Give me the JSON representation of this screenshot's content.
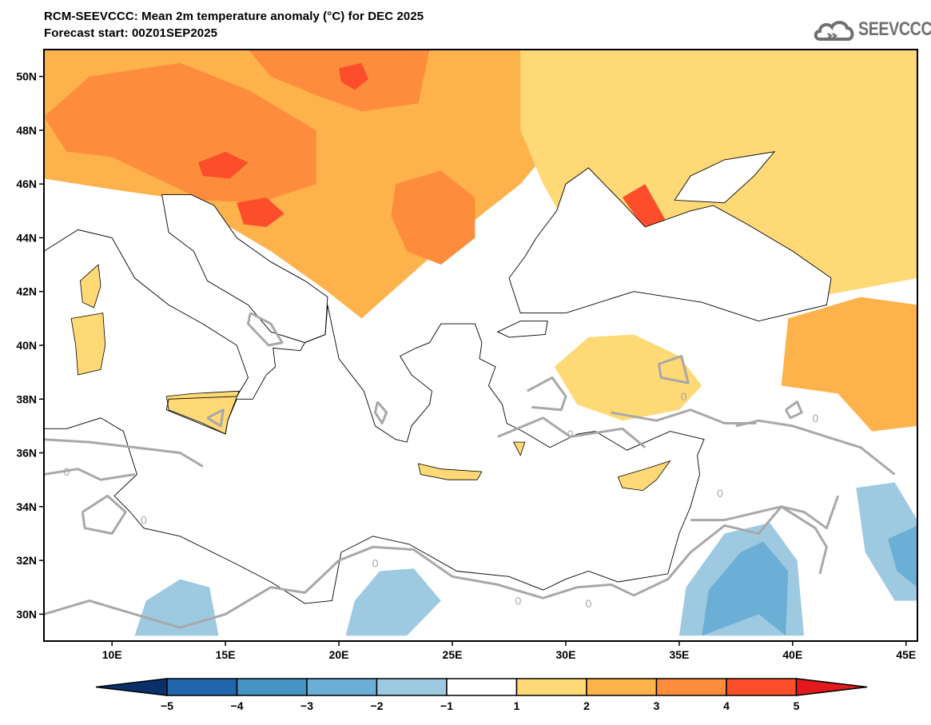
{
  "title": {
    "line1": "RCM-SEEVCCC: Mean 2m temperature anomaly (°C) for DEC 2025",
    "line2": "Forecast start: 00Z01SEP2025"
  },
  "logo": {
    "icon": "cloud-icon",
    "text": "SEEVCCC",
    "color": "#707070"
  },
  "chart_data": {
    "type": "heatmap",
    "title": "RCM-SEEVCCC: Mean 2m temperature anomaly (°C) for DEC 2025",
    "subtitle": "Forecast start: 00Z01SEP2025",
    "variable": "Mean 2m temperature anomaly",
    "units": "°C",
    "xlabel": "",
    "ylabel": "",
    "xlim": [
      7,
      45.5
    ],
    "ylim": [
      29,
      51
    ],
    "x_ticks": [
      10,
      15,
      20,
      25,
      30,
      35,
      40,
      45
    ],
    "x_tick_labels": [
      "10E",
      "15E",
      "20E",
      "25E",
      "30E",
      "35E",
      "40E",
      "45E"
    ],
    "y_ticks": [
      30,
      32,
      34,
      36,
      38,
      40,
      42,
      44,
      46,
      48,
      50
    ],
    "y_tick_labels": [
      "30N",
      "32N",
      "34N",
      "36N",
      "38N",
      "40N",
      "42N",
      "44N",
      "46N",
      "48N",
      "50N"
    ],
    "grid": false,
    "colorbar": {
      "placement": "bottom",
      "levels": [
        -5,
        -4,
        -3,
        -2,
        -1,
        1,
        2,
        3,
        4,
        5
      ],
      "tick_labels": [
        "-5",
        "-4",
        "-3",
        "-2",
        "-1",
        "1",
        "2",
        "3",
        "4",
        "5"
      ],
      "colors": [
        "#08306b",
        "#2166ac",
        "#4393c3",
        "#6baed6",
        "#9ecae1",
        "#ffffff",
        "#fed976",
        "#feb24c",
        "#fd8d3c",
        "#fc4e2a",
        "#e31a1c"
      ],
      "extend": "both"
    },
    "contour_line": {
      "level": 0,
      "label": "0",
      "color": "#a8a8a8"
    },
    "regions": [
      {
        "name": "central-europe-warm",
        "bin": "2-3",
        "color": "#feb24c",
        "poly": [
          [
            7,
            51
          ],
          [
            45.5,
            51
          ],
          [
            45.5,
            49
          ],
          [
            36,
            49.5
          ],
          [
            30,
            48
          ],
          [
            28,
            46
          ],
          [
            25,
            44
          ],
          [
            23,
            42.5
          ],
          [
            21,
            41
          ],
          [
            19.5,
            42
          ],
          [
            17,
            43.5
          ],
          [
            14,
            45
          ],
          [
            12.5,
            45.5
          ],
          [
            10,
            45.8
          ],
          [
            7,
            46.2
          ]
        ]
      },
      {
        "name": "north-band-mild",
        "bin": "1-2",
        "color": "#fed976",
        "poly": [
          [
            28,
            51
          ],
          [
            45.5,
            51
          ],
          [
            45.5,
            42.5
          ],
          [
            41,
            41.8
          ],
          [
            38,
            41.8
          ],
          [
            35,
            42.2
          ],
          [
            32,
            43
          ],
          [
            30,
            44.5
          ],
          [
            29,
            46
          ],
          [
            28,
            48
          ]
        ]
      },
      {
        "name": "alps-hot",
        "bin": "3-4",
        "color": "#fd8d3c",
        "poly": [
          [
            7,
            48.5
          ],
          [
            9,
            50
          ],
          [
            13,
            50.5
          ],
          [
            16,
            49.5
          ],
          [
            19,
            48
          ],
          [
            19,
            46
          ],
          [
            16.5,
            45.3
          ],
          [
            14,
            45.4
          ],
          [
            12,
            46.2
          ],
          [
            10,
            47
          ],
          [
            8,
            47.2
          ]
        ]
      },
      {
        "name": "poland-hot",
        "bin": "3-4",
        "color": "#fd8d3c",
        "poly": [
          [
            16,
            51
          ],
          [
            24,
            51
          ],
          [
            23.5,
            49
          ],
          [
            21,
            48.7
          ],
          [
            19,
            49.3
          ],
          [
            17,
            50
          ]
        ]
      },
      {
        "name": "romania-hot",
        "bin": "3-4",
        "color": "#fd8d3c",
        "poly": [
          [
            22.5,
            46
          ],
          [
            24.5,
            46.5
          ],
          [
            26,
            45.5
          ],
          [
            26,
            44
          ],
          [
            24.5,
            43
          ],
          [
            23,
            43.5
          ],
          [
            22.3,
            44.8
          ]
        ]
      },
      {
        "name": "austria-hotspot",
        "bin": "4-5",
        "color": "#fc4e2a",
        "poly": [
          [
            13.8,
            46.8
          ],
          [
            15,
            47.2
          ],
          [
            16,
            46.8
          ],
          [
            15.2,
            46.2
          ],
          [
            14,
            46.3
          ]
        ]
      },
      {
        "name": "bosnia-hotspot",
        "bin": "4-5",
        "color": "#fc4e2a",
        "poly": [
          [
            15.5,
            45.3
          ],
          [
            16.8,
            45.5
          ],
          [
            17.6,
            44.9
          ],
          [
            16.8,
            44.4
          ],
          [
            15.8,
            44.5
          ]
        ]
      },
      {
        "name": "poland-hotspot",
        "bin": "4-5",
        "color": "#fc4e2a",
        "poly": [
          [
            20,
            50.3
          ],
          [
            21,
            50.5
          ],
          [
            21.3,
            49.9
          ],
          [
            20.7,
            49.5
          ],
          [
            20.1,
            49.8
          ]
        ]
      },
      {
        "name": "crimea-hotspot",
        "bin": "4-5",
        "color": "#fc4e2a",
        "poly": [
          [
            32.5,
            45.5
          ],
          [
            33.5,
            46
          ],
          [
            34.5,
            44.5
          ],
          [
            33.5,
            44.3
          ]
        ]
      },
      {
        "name": "armenia-hot",
        "bin": "3-4",
        "color": "#fd8d3c",
        "poly": [
          [
            40.5,
            40.2
          ],
          [
            42,
            41.2
          ],
          [
            43.5,
            40.8
          ],
          [
            43,
            39.6
          ],
          [
            41.5,
            39.3
          ]
        ]
      },
      {
        "name": "eastern-turkey-warm",
        "bin": "2-3",
        "color": "#feb24c",
        "poly": [
          [
            39.5,
            38.5
          ],
          [
            39.8,
            41
          ],
          [
            43,
            41.8
          ],
          [
            45.5,
            41.5
          ],
          [
            45.5,
            37
          ],
          [
            43.5,
            36.8
          ],
          [
            42,
            38.2
          ]
        ]
      },
      {
        "name": "central-anatolia-mild",
        "bin": "1-2",
        "color": "#fed976",
        "poly": [
          [
            29.5,
            39.2
          ],
          [
            31,
            40.3
          ],
          [
            33,
            40.4
          ],
          [
            35,
            39.6
          ],
          [
            36,
            38.5
          ],
          [
            35,
            37.6
          ],
          [
            32.5,
            37.2
          ],
          [
            30.5,
            37.8
          ]
        ]
      },
      {
        "name": "north-africa-cool",
        "bin": "-2--1",
        "color": "#9ecae1",
        "poly": [
          [
            11,
            29.2
          ],
          [
            11.5,
            30.5
          ],
          [
            13,
            31.3
          ],
          [
            14.3,
            31
          ],
          [
            14.7,
            29.2
          ]
        ]
      },
      {
        "name": "libya-cool",
        "bin": "-2--1",
        "color": "#9ecae1",
        "poly": [
          [
            20.3,
            29.2
          ],
          [
            20.7,
            30.5
          ],
          [
            21.8,
            31.6
          ],
          [
            23.3,
            31.7
          ],
          [
            24.5,
            30.5
          ],
          [
            23,
            29.2
          ]
        ]
      },
      {
        "name": "jordan-saudi-cool",
        "bin": "-2--1",
        "color": "#9ecae1",
        "poly": [
          [
            35,
            29.2
          ],
          [
            35.3,
            31
          ],
          [
            37,
            33
          ],
          [
            39,
            33.4
          ],
          [
            40.2,
            32
          ],
          [
            40.5,
            29.2
          ]
        ]
      },
      {
        "name": "jordan-saudi-colder",
        "bin": "-3--2",
        "color": "#6baed6",
        "poly": [
          [
            36,
            29.2
          ],
          [
            36.3,
            30.9
          ],
          [
            37.7,
            32.3
          ],
          [
            38.7,
            32.7
          ],
          [
            39.8,
            31.6
          ],
          [
            39.7,
            29.2
          ],
          [
            38.5,
            30
          ]
        ]
      },
      {
        "name": "iraq-cool",
        "bin": "-2--1",
        "color": "#9ecae1",
        "poly": [
          [
            42.8,
            34.7
          ],
          [
            43.2,
            32.3
          ],
          [
            44.5,
            30.5
          ],
          [
            45.5,
            30.5
          ],
          [
            45.5,
            33.5
          ],
          [
            44.5,
            34.9
          ]
        ]
      },
      {
        "name": "iraq-colder",
        "bin": "-3--2",
        "color": "#6baed6",
        "poly": [
          [
            44.2,
            32.8
          ],
          [
            45.5,
            33.3
          ],
          [
            45.5,
            31
          ],
          [
            44.6,
            31.6
          ]
        ]
      }
    ],
    "annotations": [
      "0"
    ]
  }
}
